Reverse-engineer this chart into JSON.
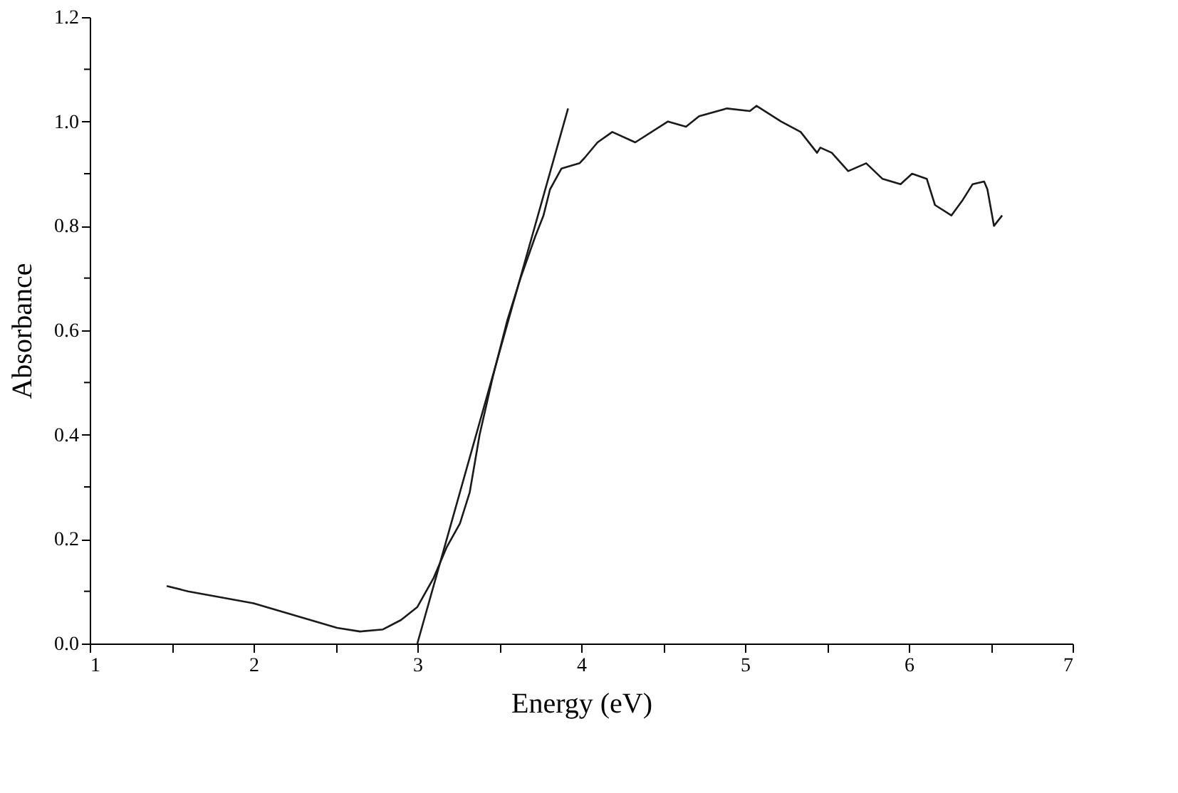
{
  "chart_data": {
    "type": "line",
    "xlabel": "Energy (eV)",
    "ylabel": "Absorbance",
    "xlim": [
      1,
      7
    ],
    "ylim": [
      0,
      1.2
    ],
    "xticks": [
      1,
      {
        "value": 1.5,
        "label": null
      },
      2,
      {
        "value": 2.5,
        "label": null
      },
      3,
      {
        "value": 3.5,
        "label": null
      },
      4,
      {
        "value": 4.5,
        "label": null
      },
      5,
      {
        "value": 5.5,
        "label": null
      },
      6,
      {
        "value": 6.5,
        "label": null
      },
      7
    ],
    "yticks": [
      {
        "value": 0,
        "label": "0.0"
      },
      {
        "value": 0.1,
        "label": null
      },
      0.2,
      {
        "value": 0.3,
        "label": null
      },
      0.4,
      {
        "value": 0.5,
        "label": null
      },
      0.6,
      {
        "value": 0.7,
        "label": null
      },
      0.8,
      {
        "value": 0.9,
        "label": null
      },
      {
        "value": 1,
        "label": "1.0"
      },
      {
        "value": 1.1,
        "label": null
      },
      1.2
    ],
    "grid": false,
    "marker": "none",
    "line_style": "solid",
    "series": [
      {
        "color": "#1a1a1a",
        "x": [
          1.47,
          1.6,
          2.0,
          2.51,
          2.65,
          2.79,
          2.9,
          3.0,
          3.1,
          3.18,
          3.26,
          3.32,
          3.38,
          3.46,
          3.55,
          3.63,
          3.72,
          3.77,
          3.81,
          3.88,
          3.99,
          4.02,
          4.1,
          4.19,
          4.33,
          4.53,
          4.64,
          4.72,
          4.89,
          5.03,
          5.07,
          5.22,
          5.34,
          5.44,
          5.46,
          5.53,
          5.63,
          5.74,
          5.84,
          5.95,
          6.02,
          6.11,
          6.16,
          6.26,
          6.33,
          6.39,
          6.46,
          6.48,
          6.52,
          6.57
        ],
        "values": [
          0.11,
          0.1,
          0.077,
          0.03,
          0.023,
          0.027,
          0.045,
          0.07,
          0.126,
          0.185,
          0.23,
          0.29,
          0.4,
          0.51,
          0.62,
          0.7,
          0.78,
          0.82,
          0.87,
          0.91,
          0.92,
          0.93,
          0.96,
          0.98,
          0.96,
          1.0,
          0.99,
          1.01,
          1.025,
          1.02,
          1.03,
          1.0,
          0.98,
          0.94,
          0.95,
          0.94,
          0.905,
          0.92,
          0.89,
          0.88,
          0.9,
          0.89,
          0.84,
          0.82,
          0.85,
          0.88,
          0.885,
          0.87,
          0.8,
          0.82
        ]
      },
      {
        "type": "line",
        "color": "#1a1a1a",
        "x": [
          3.0,
          3.92
        ],
        "values": [
          0,
          1.025
        ]
      }
    ]
  }
}
